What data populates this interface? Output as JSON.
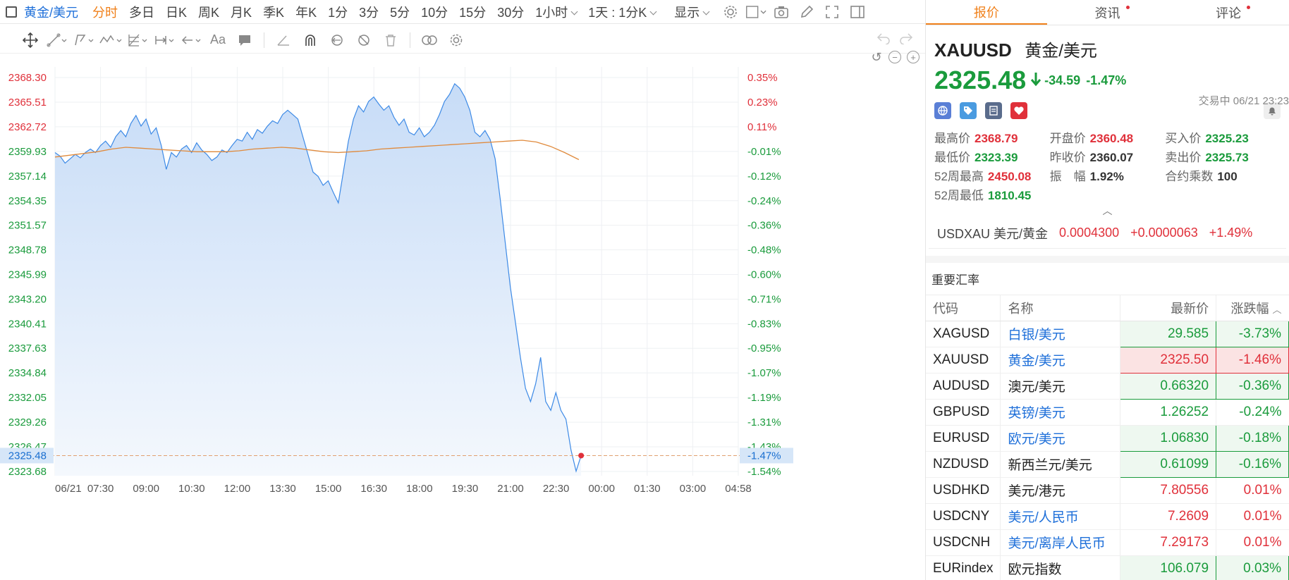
{
  "toolbar": {
    "symbol": "黄金/美元",
    "periods": [
      "分时",
      "多日",
      "日K",
      "周K",
      "月K",
      "季K",
      "年K",
      "1分",
      "3分",
      "5分",
      "10分",
      "15分",
      "30分"
    ],
    "active_period": "分时",
    "hour_dropdown": "1小时",
    "day_dropdown": "1天 : 1分K",
    "display_dropdown": "显示"
  },
  "chart_data": {
    "type": "area",
    "x_ticks": [
      "06/21",
      "07:30",
      "09:00",
      "10:30",
      "12:00",
      "13:30",
      "15:00",
      "16:30",
      "18:00",
      "19:30",
      "21:00",
      "22:30",
      "00:00",
      "01:30",
      "03:00",
      "04:58"
    ],
    "y_ticks_price": [
      "2368.30",
      "2365.51",
      "2362.72",
      "2359.93",
      "2357.14",
      "2354.35",
      "2351.57",
      "2348.78",
      "2345.99",
      "2343.20",
      "2340.41",
      "2337.63",
      "2334.84",
      "2332.05",
      "2329.26",
      "2326.47",
      "2323.68"
    ],
    "y_ticks_pct": [
      "0.35%",
      "0.23%",
      "0.11%",
      "-0.01%",
      "-0.12%",
      "-0.24%",
      "-0.36%",
      "-0.48%",
      "-0.60%",
      "-0.71%",
      "-0.83%",
      "-0.95%",
      "-1.07%",
      "-1.19%",
      "-1.31%",
      "-1.43%",
      "-1.54%"
    ],
    "ylim": [
      2323.2,
      2369.5
    ],
    "prev_close": 2360.07,
    "current_price_label": "2325.48",
    "current_pct_label": "-1.47%",
    "current_value": 2325.48,
    "series": [
      {
        "values": [
          2359.8,
          2359.4,
          2358.6,
          2359.1,
          2359.6,
          2359.2,
          2359.8,
          2360.2,
          2359.8,
          2360.6,
          2361.1,
          2360.4,
          2361.6,
          2362.3,
          2361.6,
          2363.1,
          2364.0,
          2362.8,
          2363.6,
          2361.9,
          2362.6,
          2360.6,
          2357.9,
          2359.8,
          2359.3,
          2360.2,
          2360.6,
          2359.8,
          2360.9,
          2360.1,
          2359.6,
          2358.9,
          2359.3,
          2360.1,
          2359.8,
          2360.6,
          2361.3,
          2361.1,
          2362.1,
          2361.3,
          2362.4,
          2362.0,
          2362.8,
          2363.4,
          2363.1,
          2364.1,
          2364.6,
          2364.1,
          2363.6,
          2361.6,
          2359.6,
          2357.6,
          2357.1,
          2356.1,
          2356.6,
          2355.3,
          2354.1,
          2357.6,
          2361.1,
          2363.6,
          2365.1,
          2364.4,
          2365.6,
          2366.1,
          2365.3,
          2364.6,
          2365.1,
          2363.8,
          2362.9,
          2363.6,
          2362.1,
          2361.8,
          2362.6,
          2361.6,
          2362.1,
          2362.9,
          2364.1,
          2365.6,
          2366.4,
          2367.6,
          2367.1,
          2366.1,
          2364.6,
          2362.1,
          2361.6,
          2362.3,
          2361.3,
          2359.1,
          2354.6,
          2349.6,
          2344.6,
          2340.6,
          2336.6,
          2333.1,
          2331.6,
          2333.6,
          2336.6,
          2331.6,
          2330.6,
          2332.6,
          2330.6,
          2329.6,
          2326.1,
          2323.7,
          2325.48
        ],
        "ma": [
          2359.3,
          2359.5,
          2359.7,
          2359.9,
          2360.2,
          2360.4,
          2360.3,
          2360.2,
          2360.1,
          2360.0,
          2359.9,
          2359.9,
          2359.9,
          2360.0,
          2360.2,
          2360.3,
          2360.4,
          2360.3,
          2360.1,
          2359.9,
          2359.8,
          2359.9,
          2360.0,
          2360.2,
          2360.3,
          2360.4,
          2360.5,
          2360.6,
          2360.7,
          2360.8,
          2360.9,
          2361.0,
          2361.1,
          2361.2,
          2361.0,
          2360.5,
          2359.8,
          2359.0
        ]
      }
    ]
  },
  "tabs": [
    {
      "label": "报价",
      "active": true,
      "dot": false
    },
    {
      "label": "资讯",
      "active": false,
      "dot": true
    },
    {
      "label": "评论",
      "active": false,
      "dot": true
    }
  ],
  "quote": {
    "symbol": "XAUUSD",
    "name": "黄金/美元",
    "price": "2325.48",
    "change": "-34.59",
    "change_pct": "-1.47%",
    "status": "交易中 06/21 23:23"
  },
  "stats": [
    [
      {
        "label": "最高价",
        "value": "2368.79",
        "tone": "red"
      },
      {
        "label": "开盘价",
        "value": "2360.48",
        "tone": "red"
      },
      {
        "label": "买入价",
        "value": "2325.23",
        "tone": "green"
      }
    ],
    [
      {
        "label": "最低价",
        "value": "2323.39",
        "tone": "green"
      },
      {
        "label": "昨收价",
        "value": "2360.07",
        "tone": "dark"
      },
      {
        "label": "卖出价",
        "value": "2325.73",
        "tone": "green"
      }
    ],
    [
      {
        "label": "52周最高",
        "value": "2450.08",
        "tone": "red"
      },
      {
        "label": "振　幅",
        "value": "1.92%",
        "tone": "dark"
      },
      {
        "label": "合约乘数",
        "value": "100",
        "tone": "dark"
      }
    ],
    [
      {
        "label": "52周最低",
        "value": "1810.45",
        "tone": "green"
      }
    ]
  ],
  "inverse": {
    "symbol": "USDXAU 美元/黄金",
    "price": "0.0004300",
    "change": "+0.0000063",
    "pct": "+1.49%"
  },
  "rates": {
    "title": "重要汇率",
    "headers": [
      "代码",
      "名称",
      "最新价",
      "涨跌幅"
    ],
    "rows": [
      {
        "code": "XAGUSD",
        "name": "白银/美元",
        "price": "29.585",
        "pct": "-3.73%",
        "tone": "green",
        "boxed": true,
        "link": true
      },
      {
        "code": "XAUUSD",
        "name": "黄金/美元",
        "price": "2325.50",
        "pct": "-1.46%",
        "tone": "red",
        "boxed": true,
        "link": true
      },
      {
        "code": "AUDUSD",
        "name": "澳元/美元",
        "price": "0.66320",
        "pct": "-0.36%",
        "tone": "green",
        "boxed": true,
        "link": false
      },
      {
        "code": "GBPUSD",
        "name": "英镑/美元",
        "price": "1.26252",
        "pct": "-0.24%",
        "tone": "green",
        "boxed": false,
        "link": true
      },
      {
        "code": "EURUSD",
        "name": "欧元/美元",
        "price": "1.06830",
        "pct": "-0.18%",
        "tone": "green",
        "boxed": true,
        "link": true
      },
      {
        "code": "NZDUSD",
        "name": "新西兰元/美元",
        "price": "0.61099",
        "pct": "-0.16%",
        "tone": "green",
        "boxed": true,
        "link": false
      },
      {
        "code": "USDHKD",
        "name": "美元/港元",
        "price": "7.80556",
        "pct": "0.01%",
        "tone": "red",
        "boxed": false,
        "link": false
      },
      {
        "code": "USDCNY",
        "name": "美元/人民币",
        "price": "7.2609",
        "pct": "0.01%",
        "tone": "red",
        "boxed": false,
        "link": true
      },
      {
        "code": "USDCNH",
        "name": "美元/离岸人民币",
        "price": "7.29173",
        "pct": "0.01%",
        "tone": "red",
        "boxed": false,
        "link": true
      },
      {
        "code": "EURindex",
        "name": "欧元指数",
        "price": "106.079",
        "pct": "0.03%",
        "tone": "green",
        "boxed": true,
        "link": false
      }
    ]
  },
  "colors": {
    "up": "#e0303a",
    "down": "#1a9b3c",
    "accent": "#f0801a",
    "line": "#3d8ae6",
    "ma": "#e08a3c"
  }
}
